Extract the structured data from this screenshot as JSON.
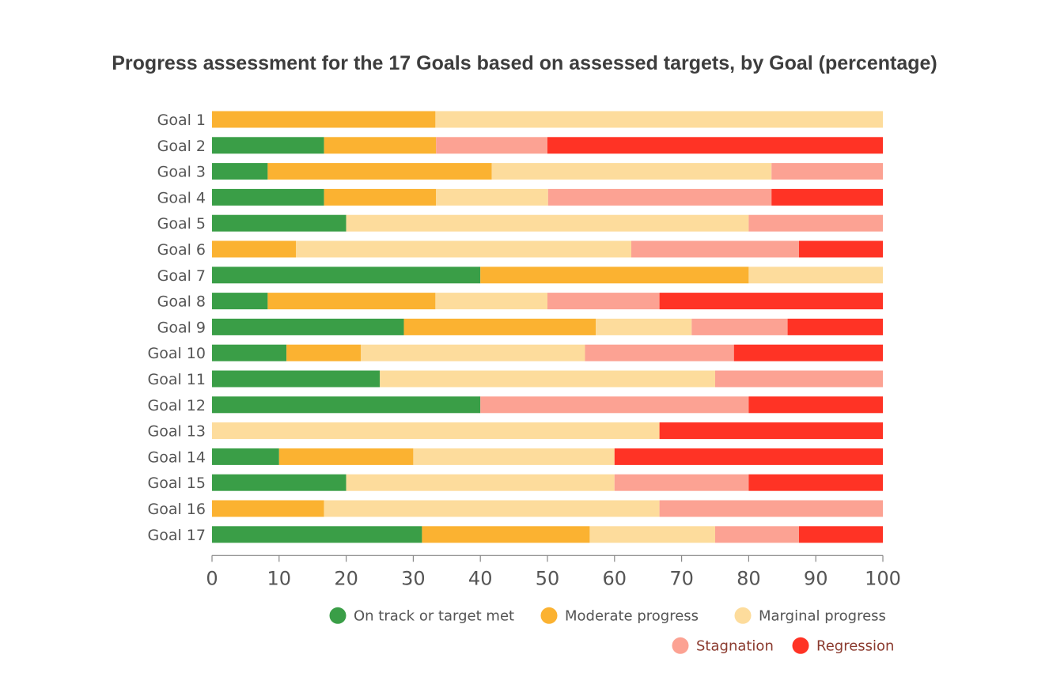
{
  "chart_data": {
    "type": "bar",
    "orientation": "horizontal",
    "stacked": true,
    "title": "Progress assessment for the 17 Goals based on assessed targets, by Goal (percentage)",
    "xlabel": "",
    "ylabel": "",
    "xlim": [
      0,
      100
    ],
    "xticks": [
      "0",
      "10",
      "20",
      "30",
      "40",
      "50",
      "60",
      "70",
      "80",
      "90",
      "100"
    ],
    "categories": [
      "Goal 1",
      "Goal 2",
      "Goal 3",
      "Goal 4",
      "Goal 5",
      "Goal 6",
      "Goal 7",
      "Goal 8",
      "Goal 9",
      "Goal 10",
      "Goal 11",
      "Goal 12",
      "Goal 13",
      "Goal 14",
      "Goal 15",
      "Goal 16",
      "Goal 17"
    ],
    "series": [
      {
        "name": "On track or target met",
        "color": "#3a9e47",
        "values": [
          0,
          16.7,
          8.3,
          16.7,
          20,
          0,
          40,
          8.3,
          28.6,
          11.1,
          25,
          40,
          0,
          10,
          20,
          0,
          31.3
        ]
      },
      {
        "name": "Moderate progress",
        "color": "#fbb231",
        "values": [
          33.3,
          16.7,
          33.4,
          16.7,
          0,
          12.5,
          40,
          25,
          28.6,
          11.1,
          0,
          0,
          0,
          20,
          0,
          16.7,
          25
        ]
      },
      {
        "name": "Marginal progress",
        "color": "#fddc9c",
        "values": [
          66.7,
          0,
          41.7,
          16.7,
          60,
          50,
          20,
          16.7,
          14.3,
          33.4,
          50,
          0,
          66.7,
          30,
          40,
          50,
          18.7
        ]
      },
      {
        "name": "Stagnation",
        "color": "#fca293",
        "values": [
          0,
          16.6,
          16.6,
          33.3,
          20,
          25,
          0,
          16.7,
          14.3,
          22.2,
          25,
          40,
          0,
          0,
          20,
          33.3,
          12.5
        ]
      },
      {
        "name": "Regression",
        "color": "#ff3325",
        "values": [
          0,
          50,
          0,
          16.6,
          0,
          12.5,
          0,
          33.3,
          14.2,
          22.2,
          0,
          20,
          33.3,
          40,
          20,
          0,
          12.5
        ]
      }
    ],
    "legend": {
      "position": "bottom-right"
    }
  }
}
